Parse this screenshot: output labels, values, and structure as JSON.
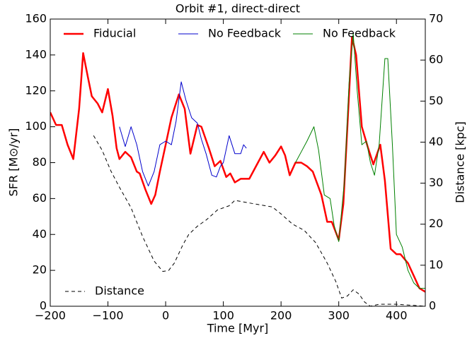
{
  "chart_data": {
    "type": "line",
    "title": "Orbit #1, direct-direct",
    "xlabel": "Time [Myr]",
    "ylabel": "SFR [M⊙/yr]",
    "y2label": "Distance [kpc]",
    "xlim": [
      -200,
      450
    ],
    "xticks": [
      {
        "value": -200,
        "label": "−200"
      },
      {
        "value": -100,
        "label": "−100"
      },
      0,
      100,
      200,
      300,
      400
    ],
    "ylim": [
      0,
      160
    ],
    "yticks": [
      0,
      20,
      40,
      60,
      80,
      100,
      120,
      140,
      160
    ],
    "y2lim": [
      0,
      70
    ],
    "y2ticks": [
      0,
      10,
      20,
      30,
      40,
      50,
      60,
      70
    ],
    "legend": "upper center",
    "legend2": "lower left",
    "series": [
      {
        "name": "Fiducial",
        "color": "#ff0000",
        "width": 2.5,
        "x": [
          -200,
          -190,
          -180,
          -170,
          -160,
          -150,
          -143,
          -135,
          -128,
          -118,
          -110,
          -100,
          -92,
          -85,
          -80,
          -70,
          -60,
          -50,
          -45,
          -35,
          -25,
          -18,
          -10,
          0,
          10,
          23,
          33,
          43,
          55,
          62,
          75,
          85,
          95,
          105,
          112,
          120,
          130,
          145,
          160,
          170,
          180,
          190,
          200,
          207,
          215,
          225,
          235,
          245,
          255,
          270,
          280,
          288,
          300,
          308,
          315,
          323,
          330,
          340,
          350,
          360,
          372,
          380,
          390,
          400,
          407,
          420,
          430,
          440,
          450
        ],
        "values": [
          108,
          101,
          101,
          90,
          82,
          110,
          141,
          128,
          117,
          113,
          108,
          121,
          106,
          88,
          82,
          86,
          83,
          75,
          74,
          65,
          57,
          62,
          75,
          90,
          105,
          118,
          110,
          85,
          101,
          100,
          88,
          78,
          81,
          72,
          74,
          69,
          71,
          71,
          80,
          86,
          80,
          84,
          89,
          84,
          73,
          80,
          80,
          78,
          75,
          62,
          47,
          47,
          37,
          57,
          100,
          150,
          140,
          100,
          89,
          79,
          90,
          70,
          32,
          29,
          29,
          24,
          17,
          10,
          8
        ]
      },
      {
        "name": "No Feedback",
        "color": "#0000cc",
        "width": 1,
        "x": [
          -80,
          -70,
          -60,
          -50,
          -40,
          -30,
          -20,
          -10,
          0,
          10,
          18,
          27,
          35,
          45,
          55,
          62,
          70,
          80,
          88,
          95,
          100,
          110,
          120,
          130,
          135,
          140
        ],
        "values": [
          100,
          89,
          100,
          90,
          75,
          67,
          75,
          90,
          92,
          90,
          103,
          125,
          115,
          105,
          102,
          93,
          85,
          73,
          72,
          78,
          80,
          95,
          85,
          85,
          90,
          88
        ]
      },
      {
        "name": "No Feedback",
        "color": "#008000",
        "width": 1,
        "x": [
          225,
          235,
          245,
          257,
          265,
          275,
          285,
          292,
          300,
          310,
          318,
          325,
          332,
          340,
          348,
          355,
          362,
          370,
          380,
          385,
          393,
          400,
          410,
          420,
          430,
          440,
          450
        ],
        "values": [
          80,
          86,
          92,
          100,
          87,
          62,
          60,
          45,
          36,
          70,
          125,
          152,
          120,
          90,
          92,
          80,
          73,
          90,
          138,
          138,
          90,
          40,
          33,
          20,
          13,
          10,
          10
        ]
      },
      {
        "name": "Distance",
        "color": "#000000",
        "width": 1,
        "dash": "5,4",
        "axis": "y2",
        "x": [
          -125,
          -110,
          -95,
          -80,
          -60,
          -40,
          -20,
          -5,
          5,
          15,
          30,
          40,
          55,
          70,
          90,
          110,
          120,
          140,
          160,
          185,
          200,
          220,
          240,
          260,
          280,
          295,
          305,
          315,
          325,
          335,
          345,
          355,
          370,
          400,
          430,
          450
        ],
        "values": [
          41.6,
          38,
          33,
          29,
          24,
          17,
          11,
          8.5,
          8.7,
          10.5,
          15,
          17.5,
          19.5,
          21,
          23.5,
          24.5,
          25.8,
          25.3,
          24.8,
          24.2,
          22.5,
          20,
          18.5,
          15.5,
          10.5,
          6,
          2,
          2.5,
          4,
          3,
          1,
          0,
          0.5,
          0.5,
          0.2,
          0
        ]
      }
    ]
  }
}
